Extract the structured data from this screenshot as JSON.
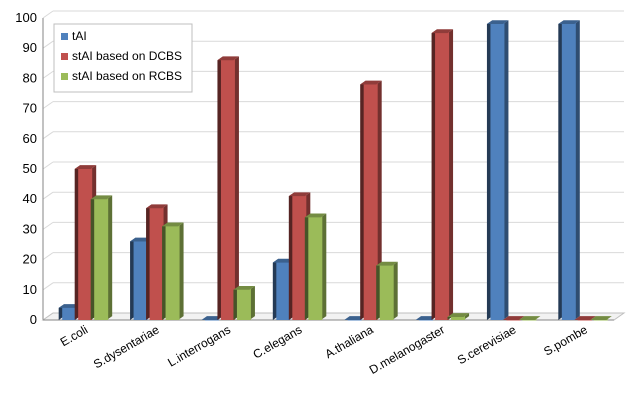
{
  "chart_data": {
    "type": "bar",
    "categories": [
      "E.coli",
      "S.dysentariae",
      "L.interrogans",
      "C.elegans",
      "A.thaliana",
      "D.melanogaster",
      "S.cerevisiae",
      "S.pombe"
    ],
    "series": [
      {
        "name": "tAI",
        "color": "#4f81bd",
        "values": [
          4,
          26,
          0,
          19,
          0,
          0,
          98,
          98
        ]
      },
      {
        "name": "stAI based on DCBS",
        "color": "#c0504d",
        "values": [
          50,
          37,
          86,
          41,
          78,
          95,
          0,
          0
        ]
      },
      {
        "name": "stAI based on RCBS",
        "color": "#9bbb59",
        "values": [
          40,
          31,
          10,
          34,
          18,
          1,
          0,
          0
        ]
      }
    ],
    "yticks": [
      "0",
      "10",
      "20",
      "30",
      "40",
      "50",
      "60",
      "70",
      "80",
      "90",
      "100"
    ],
    "ylim": [
      0,
      100
    ],
    "grid": true,
    "legend": "top-left",
    "style": "3d-column"
  }
}
